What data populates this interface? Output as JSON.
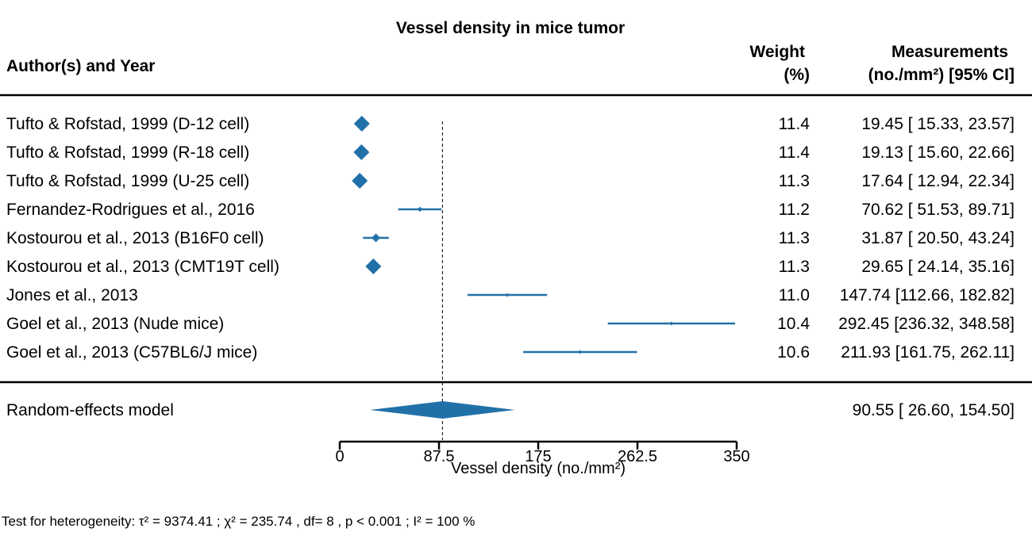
{
  "chart_data": {
    "type": "forest",
    "title": "Vessel density in mice tumor",
    "columns": {
      "study": "Author(s) and Year",
      "weight_line1": "Weight",
      "weight_line2": "(%)",
      "measure_line1": "Measurements",
      "measure_line2": "(no./mm²) [95% CI]"
    },
    "studies": [
      {
        "label": "Tufto & Rofstad, 1999 (D-12 cell)",
        "est": 19.45,
        "lo": 15.33,
        "hi": 23.57,
        "weight": 11.4,
        "weight_text": "11.4",
        "ci_text": "19.45 [ 15.33,  23.57]"
      },
      {
        "label": "Tufto & Rofstad, 1999 (R-18 cell)",
        "est": 19.13,
        "lo": 15.6,
        "hi": 22.66,
        "weight": 11.4,
        "weight_text": "11.4",
        "ci_text": "19.13 [ 15.60,  22.66]"
      },
      {
        "label": "Tufto & Rofstad, 1999 (U-25 cell)",
        "est": 17.64,
        "lo": 12.94,
        "hi": 22.34,
        "weight": 11.3,
        "weight_text": "11.3",
        "ci_text": "17.64 [ 12.94,  22.34]"
      },
      {
        "label": "Fernandez-Rodrigues et al., 2016",
        "est": 70.62,
        "lo": 51.53,
        "hi": 89.71,
        "weight": 11.2,
        "weight_text": "11.2",
        "ci_text": "70.62 [ 51.53,  89.71]"
      },
      {
        "label": "Kostourou et al., 2013 (B16F0 cell)",
        "est": 31.87,
        "lo": 20.5,
        "hi": 43.24,
        "weight": 11.3,
        "weight_text": "11.3",
        "ci_text": "31.87 [ 20.50,  43.24]"
      },
      {
        "label": "Kostourou et al., 2013 (CMT19T cell)",
        "est": 29.65,
        "lo": 24.14,
        "hi": 35.16,
        "weight": 11.3,
        "weight_text": "11.3",
        "ci_text": "29.65 [ 24.14,  35.16]"
      },
      {
        "label": "Jones et al., 2013",
        "est": 147.74,
        "lo": 112.66,
        "hi": 182.82,
        "weight": 11.0,
        "weight_text": "11.0",
        "ci_text": "147.74 [112.66, 182.82]"
      },
      {
        "label": "Goel et al., 2013 (Nude mice)",
        "est": 292.45,
        "lo": 236.32,
        "hi": 348.58,
        "weight": 10.4,
        "weight_text": "10.4",
        "ci_text": "292.45 [236.32, 348.58]"
      },
      {
        "label": "Goel et al., 2013 (C57BL6/J mice)",
        "est": 211.93,
        "lo": 161.75,
        "hi": 262.11,
        "weight": 10.6,
        "weight_text": "10.6",
        "ci_text": "211.93 [161.75, 262.11]"
      }
    ],
    "summary": {
      "label": "Random-effects model",
      "est": 90.55,
      "lo": 26.6,
      "hi": 154.5,
      "ci_text": "90.55 [ 26.60, 154.50]"
    },
    "reference_line": 90.55,
    "x_axis": {
      "xlim": [
        0,
        350
      ],
      "ticks": [
        0,
        87.5,
        175,
        262.5,
        350
      ],
      "tick_labels": [
        "0",
        "87.5",
        "175",
        "262.5",
        "350"
      ],
      "label": "Vessel density (no./mm²)"
    },
    "heterogeneity_text": "Test for heterogeneity:  τ² = 9374.41 ;  χ² = 235.74 , df= 8 ,  p < 0.001 ;  I² = 100 %",
    "marker_color": "#2171a8"
  }
}
